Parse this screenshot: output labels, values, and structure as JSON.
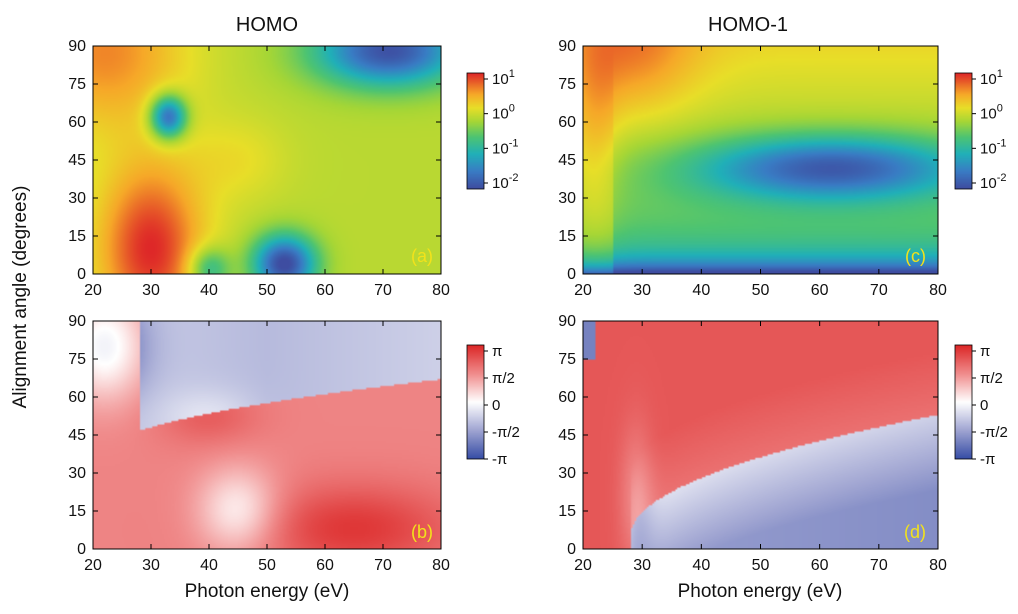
{
  "chart_data": [
    {
      "type": "heatmap",
      "id": "a",
      "title": "HOMO",
      "panel_label": "(a)",
      "xlabel": "",
      "ylabel": "Alignment angle (degrees)",
      "xlim": [
        20,
        80
      ],
      "ylim": [
        0,
        90
      ],
      "xticks": [
        "20",
        "30",
        "40",
        "50",
        "60",
        "70",
        "80"
      ],
      "yticks": [
        "0",
        "15",
        "30",
        "45",
        "60",
        "75",
        "90"
      ],
      "colorscale": "log",
      "colorbar_labels": [
        {
          "base": "10",
          "exp": "1"
        },
        {
          "base": "10",
          "exp": "0"
        },
        {
          "base": "10",
          "exp": "-1"
        },
        {
          "base": "10",
          "exp": "-2"
        }
      ],
      "color_range": [
        0.01,
        10
      ],
      "features": [
        {
          "x": 30,
          "y": 12,
          "value": 8,
          "desc": "maximum"
        },
        {
          "x": 33,
          "y": 63,
          "value": 0.01,
          "desc": "minimum"
        },
        {
          "x": 53,
          "y": 5,
          "value": 0.01,
          "desc": "minimum"
        },
        {
          "x": 70,
          "y": 85,
          "value": 0.01,
          "desc": "minimum"
        },
        {
          "x": 22,
          "y": 85,
          "value": 2,
          "desc": "high"
        }
      ]
    },
    {
      "type": "heatmap",
      "id": "b",
      "title": "",
      "panel_label": "(b)",
      "xlabel": "Photon energy (eV)",
      "ylabel": "Alignment angle (degrees)",
      "xlim": [
        20,
        80
      ],
      "ylim": [
        0,
        90
      ],
      "xticks": [
        "20",
        "30",
        "40",
        "50",
        "60",
        "70",
        "80"
      ],
      "yticks": [
        "0",
        "15",
        "30",
        "45",
        "60",
        "75",
        "90"
      ],
      "colorscale": "linear",
      "colorbar_labels": [
        "π",
        "π/2",
        "0",
        "-π/2",
        "-π"
      ],
      "color_range": [
        -3.14159,
        3.14159
      ],
      "features": [
        {
          "x": 60,
          "y": 5,
          "value": 3.1,
          "desc": "phase near π"
        },
        {
          "x": 45,
          "y": 88,
          "value": -1.0,
          "desc": "negative phase"
        },
        {
          "x": 22,
          "y": 80,
          "value": 0,
          "desc": "phase near 0"
        }
      ]
    },
    {
      "type": "heatmap",
      "id": "c",
      "title": "HOMO-1",
      "panel_label": "(c)",
      "xlabel": "",
      "ylabel": "",
      "xlim": [
        20,
        80
      ],
      "ylim": [
        0,
        90
      ],
      "xticks": [
        "20",
        "30",
        "40",
        "50",
        "60",
        "70",
        "80"
      ],
      "yticks": [
        "0",
        "15",
        "30",
        "45",
        "60",
        "75",
        "90"
      ],
      "colorscale": "log",
      "colorbar_labels": [
        {
          "base": "10",
          "exp": "1"
        },
        {
          "base": "10",
          "exp": "0"
        },
        {
          "base": "10",
          "exp": "-1"
        },
        {
          "base": "10",
          "exp": "-2"
        }
      ],
      "color_range": [
        0.01,
        10
      ],
      "features": [
        {
          "x": 28,
          "y": 85,
          "value": 3,
          "desc": "high"
        },
        {
          "x": 60,
          "y": 42,
          "value": 0.01,
          "desc": "minimum valley"
        },
        {
          "x": 50,
          "y": 2,
          "value": 0.01,
          "desc": "low"
        }
      ]
    },
    {
      "type": "heatmap",
      "id": "d",
      "title": "",
      "panel_label": "(d)",
      "xlabel": "Photon energy (eV)",
      "ylabel": "",
      "xlim": [
        20,
        80
      ],
      "ylim": [
        0,
        90
      ],
      "xticks": [
        "20",
        "30",
        "40",
        "50",
        "60",
        "70",
        "80"
      ],
      "yticks": [
        "0",
        "15",
        "30",
        "45",
        "60",
        "75",
        "90"
      ],
      "colorscale": "linear",
      "colorbar_labels": [
        "π",
        "π/2",
        "0",
        "-π/2",
        "-π"
      ],
      "color_range": [
        -3.14159,
        3.14159
      ],
      "features": [
        {
          "x": 50,
          "y": 80,
          "value": 2.6,
          "desc": "positive phase"
        },
        {
          "x": 75,
          "y": 10,
          "value": -1.7,
          "desc": "negative phase"
        }
      ]
    }
  ]
}
